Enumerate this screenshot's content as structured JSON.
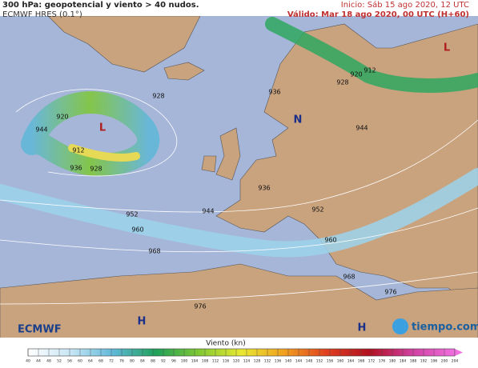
{
  "header": {
    "title": "300 hPa: geopotencial y viento > 40 nudos.",
    "model": "ECMWF HRES (0.1°)",
    "init": "Inicio: Sáb 15 ago 2020, 12 UTC",
    "valid": "Válido: Mar 18 ago 2020, 00 UTC (H+60)"
  },
  "map": {
    "labels": [
      "920",
      "L",
      "944",
      "912",
      "936",
      "928",
      "928",
      "936",
      "920",
      "912",
      "928",
      "944",
      "L",
      "N",
      "936",
      "944",
      "952",
      "952",
      "960",
      "960",
      "968",
      "968",
      "976",
      "976",
      "H",
      "H"
    ]
  },
  "logos": {
    "left": "ECMWF",
    "right": "tiempo.com"
  },
  "legend": {
    "title": "Viento (kn)",
    "ticks": [
      40,
      44,
      48,
      52,
      56,
      60,
      64,
      68,
      72,
      76,
      80,
      84,
      88,
      92,
      96,
      100,
      104,
      108,
      112,
      116,
      120,
      124,
      128,
      132,
      136,
      140,
      144,
      148,
      152,
      156,
      160,
      164,
      168,
      172,
      176,
      180,
      184,
      188,
      192,
      196,
      200,
      204
    ]
  }
}
